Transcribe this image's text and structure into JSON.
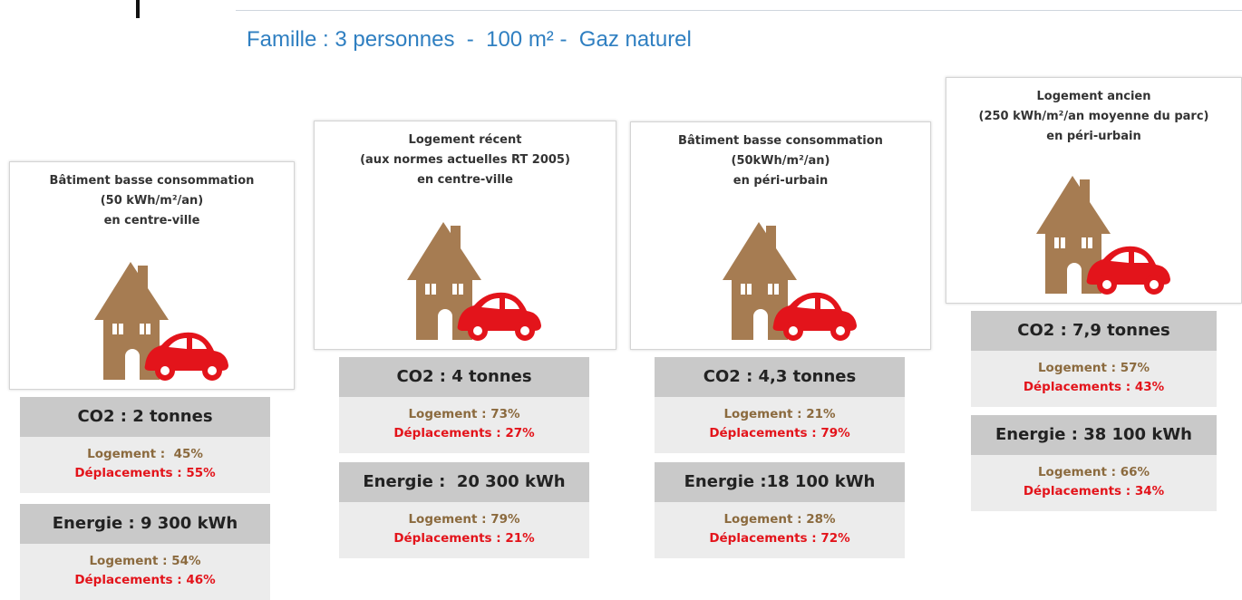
{
  "title": "Famille : 3 personnes  -  100 m² -  Gaz naturel",
  "cards": [
    {
      "label": [
        "Bâtiment basse consommation",
        "(50 kWh/m²/an)",
        "en centre-ville"
      ],
      "co2": {
        "title": "CO2 : 2 tonnes",
        "logement": "Logement :  45%",
        "deplacements": "Déplacements : 55%"
      },
      "energie": {
        "title": "Energie : 9 300 kWh",
        "logement": "Logement : 54%",
        "deplacements": "Déplacements : 46%"
      }
    },
    {
      "label": [
        "Logement récent",
        "(aux normes actuelles RT 2005)",
        "en centre-ville"
      ],
      "co2": {
        "title": "CO2 : 4 tonnes",
        "logement": "Logement : 73%",
        "deplacements": "Déplacements : 27%"
      },
      "energie": {
        "title": "Energie :  20 300 kWh",
        "logement": "Logement : 79%",
        "deplacements": "Déplacements : 21%"
      }
    },
    {
      "label": [
        "Bâtiment basse consommation",
        "(50kWh/m²/an)",
        "en péri-urbain"
      ],
      "co2": {
        "title": "CO2 : 4,3 tonnes",
        "logement": "Logement : 21%",
        "deplacements": "Déplacements : 79%"
      },
      "energie": {
        "title": "Energie :18 100 kWh",
        "logement": "Logement : 28%",
        "deplacements": "Déplacements : 72%"
      }
    },
    {
      "label": [
        "Logement ancien",
        "(250 kWh/m²/an moyenne du parc)",
        "en péri-urbain"
      ],
      "co2": {
        "title": "CO2 : 7,9 tonnes",
        "logement": "Logement : 57%",
        "deplacements": "Déplacements : 43%"
      },
      "energie": {
        "title": "Energie : 38 100 kWh",
        "logement": "Logement : 66%",
        "deplacements": "Déplacements : 34%"
      }
    }
  ]
}
